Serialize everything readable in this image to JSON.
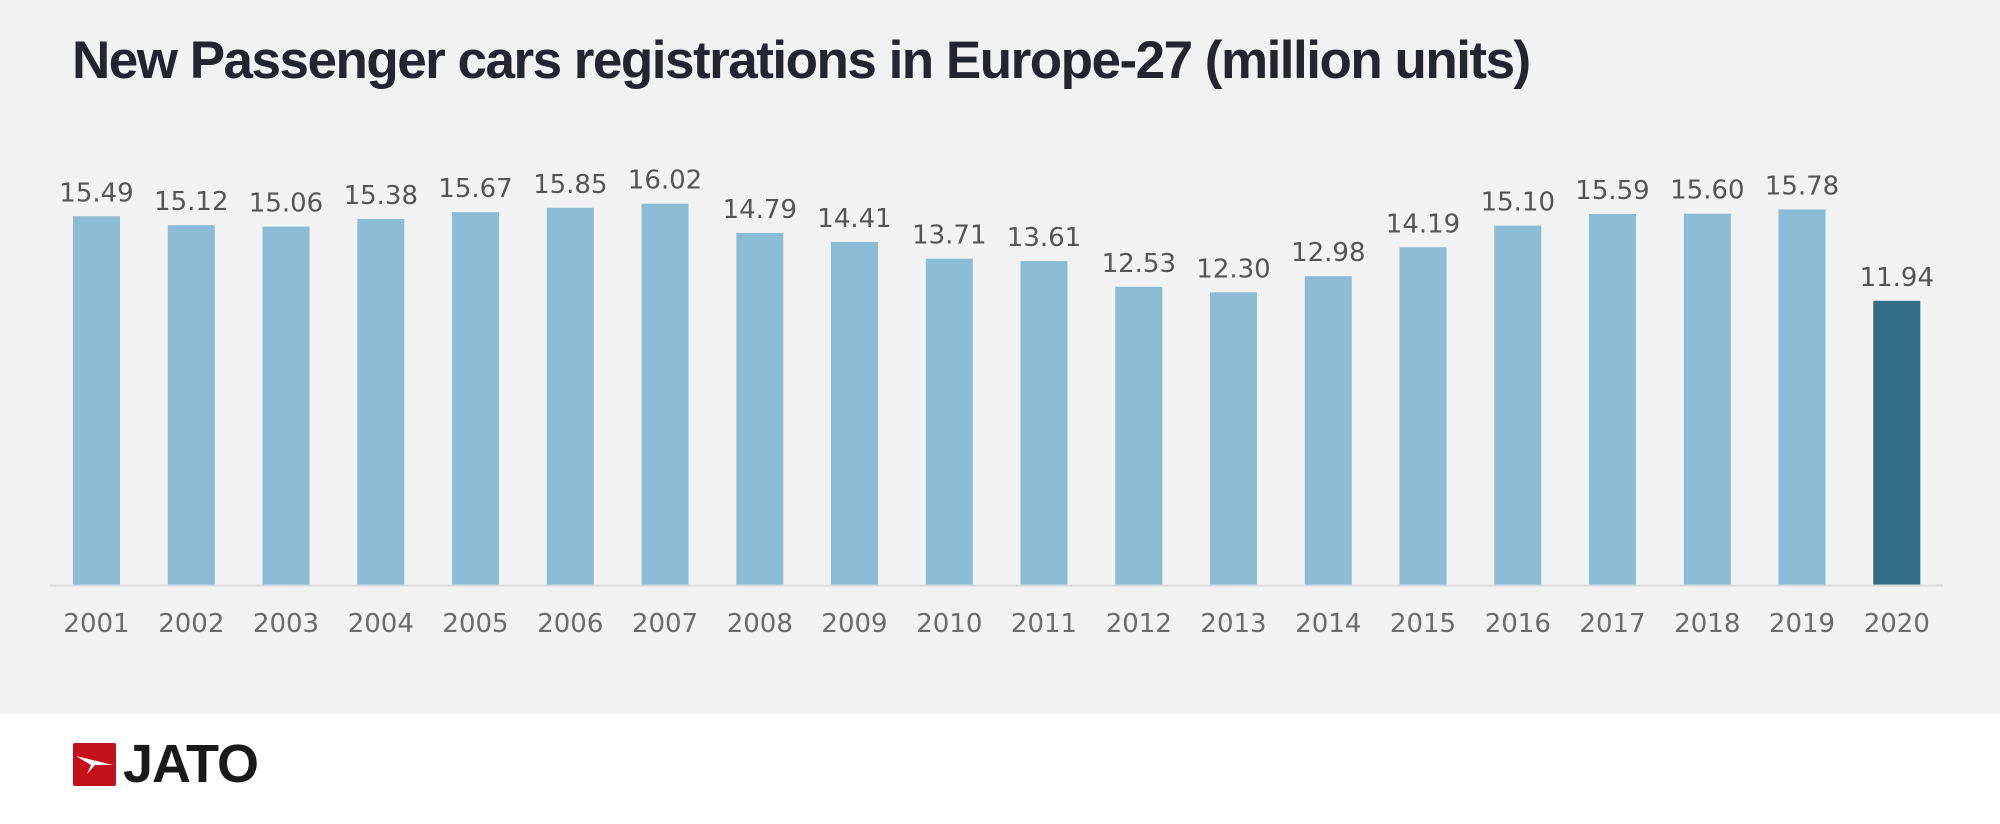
{
  "page": {
    "title": "New Passenger cars registrations in Europe-27 (million units)",
    "brand": "JATO"
  },
  "colors": {
    "background": "#f2f2f2",
    "bar": "#8bbcd5",
    "highlight_bar": "#336d88",
    "label": "#555555",
    "axis": "#d9d9d9",
    "brand_red": "#c4121a"
  },
  "chart_data": {
    "type": "bar",
    "title": "New Passenger cars registrations in Europe-27 (million units)",
    "xlabel": "",
    "ylabel": "",
    "ylim": [
      0,
      16.5
    ],
    "grid": false,
    "legend": "none",
    "categories": [
      "2001",
      "2002",
      "2003",
      "2004",
      "2005",
      "2006",
      "2007",
      "2008",
      "2009",
      "2010",
      "2011",
      "2012",
      "2013",
      "2014",
      "2015",
      "2016",
      "2017",
      "2018",
      "2019",
      "2020"
    ],
    "values": [
      15.49,
      15.12,
      15.06,
      15.38,
      15.67,
      15.85,
      16.02,
      14.79,
      14.41,
      13.71,
      13.61,
      12.53,
      12.3,
      12.98,
      14.19,
      15.1,
      15.59,
      15.6,
      15.78,
      11.94
    ],
    "data_labels": [
      "15.49",
      "15.12",
      "15.06",
      "15.38",
      "15.67",
      "15.85",
      "16.02",
      "14.79",
      "14.41",
      "13.71",
      "13.61",
      "12.53",
      "12.30",
      "12.98",
      "14.19",
      "15.10",
      "15.59",
      "15.60",
      "15.78",
      "11.94"
    ],
    "highlighted": [
      "2020"
    ]
  }
}
